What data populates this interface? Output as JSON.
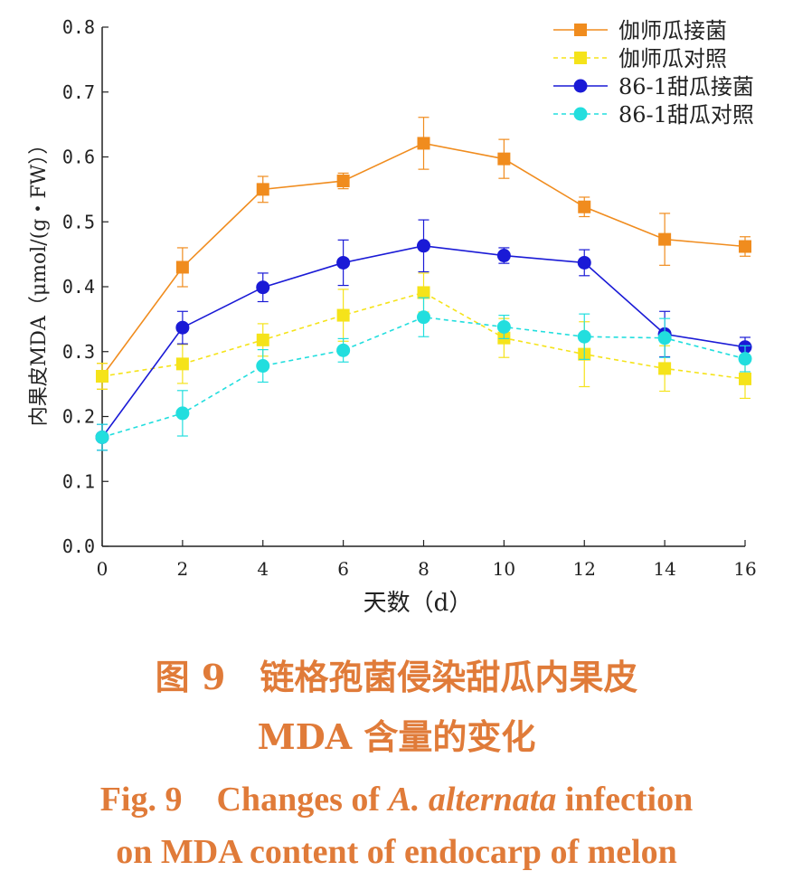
{
  "chart_data": {
    "type": "line",
    "xlabel": "天数（d）",
    "ylabel": "内果皮MDA（μmol/(g・FW））",
    "x": [
      0,
      2,
      4,
      6,
      8,
      10,
      12,
      14,
      16
    ],
    "xlim": [
      0,
      16
    ],
    "ylim": [
      0,
      0.8
    ],
    "x_ticks": [
      "0",
      "2",
      "4",
      "6",
      "8",
      "10",
      "12",
      "14",
      "16"
    ],
    "y_ticks": [
      "0.0",
      "0.1",
      "0.2",
      "0.3",
      "0.4",
      "0.5",
      "0.6",
      "0.7",
      "0.8"
    ],
    "grid": false,
    "legend_position": "top-right",
    "series": [
      {
        "name": "伽师瓜接菌",
        "color": "#f08c1e",
        "marker": "square",
        "line": "solid",
        "values": [
          0.262,
          0.43,
          0.55,
          0.563,
          0.621,
          0.597,
          0.523,
          0.473,
          0.462
        ],
        "errors": [
          0.02,
          0.03,
          0.02,
          0.012,
          0.04,
          0.03,
          0.015,
          0.04,
          0.015
        ]
      },
      {
        "name": "伽师瓜对照",
        "color": "#f5e31a",
        "marker": "square",
        "line": "dashed",
        "values": [
          0.262,
          0.281,
          0.318,
          0.356,
          0.391,
          0.321,
          0.296,
          0.274,
          0.258
        ],
        "errors": [
          0.02,
          0.03,
          0.025,
          0.04,
          0.03,
          0.03,
          0.05,
          0.035,
          0.03
        ]
      },
      {
        "name": "86-1甜瓜接菌",
        "color": "#1a1ad6",
        "marker": "circle",
        "line": "solid",
        "values": [
          0.168,
          0.337,
          0.399,
          0.437,
          0.463,
          0.448,
          0.437,
          0.327,
          0.307
        ],
        "errors": [
          0.02,
          0.025,
          0.022,
          0.035,
          0.04,
          0.012,
          0.02,
          0.035,
          0.015
        ]
      },
      {
        "name": "86-1甜瓜对照",
        "color": "#22dede",
        "marker": "circle",
        "line": "dashed",
        "values": [
          0.168,
          0.205,
          0.278,
          0.302,
          0.353,
          0.338,
          0.323,
          0.321,
          0.289
        ],
        "errors": [
          0.02,
          0.035,
          0.025,
          0.018,
          0.03,
          0.018,
          0.035,
          0.03,
          0.02
        ]
      }
    ]
  },
  "caption": {
    "cn_line1": "图 9　链格孢菌侵染甜瓜内果皮",
    "cn_line2": "MDA 含量的变化",
    "en_line1_prefix": "Fig. 9　Changes of ",
    "en_line1_italic": "A. alternata",
    "en_line1_suffix": " infection",
    "en_line2": "on MDA content of endocarp of melon"
  }
}
